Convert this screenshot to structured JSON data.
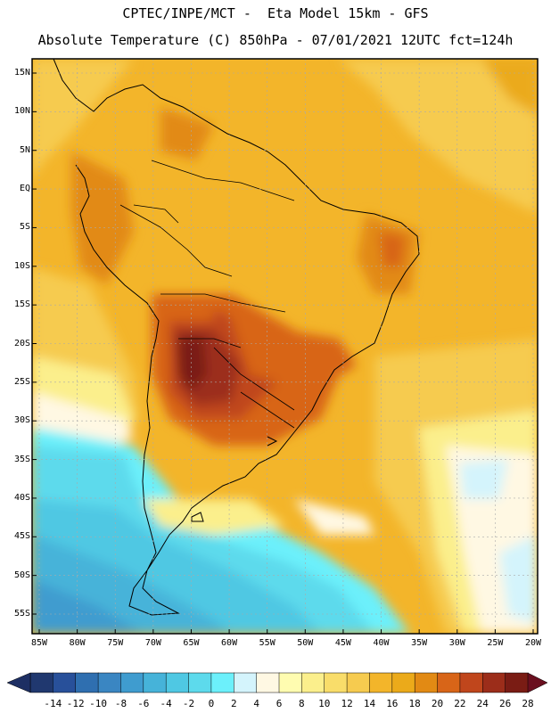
{
  "header": {
    "line1": "CPTEC/INPE/MCT -  Eta Model 15km - GFS",
    "line2": "Absolute Temperature (C) 850hPa - 07/01/2021 12UTC fct=124h"
  },
  "lat_labels": [
    "15N",
    "10N",
    "5N",
    "EQ",
    "5S",
    "10S",
    "15S",
    "20S",
    "25S",
    "30S",
    "35S",
    "40S",
    "45S",
    "50S",
    "55S"
  ],
  "lon_labels": [
    "85W",
    "80W",
    "75W",
    "70W",
    "65W",
    "60W",
    "55W",
    "50W",
    "45W",
    "40W",
    "35W",
    "30W",
    "25W",
    "20W"
  ],
  "colorbar": {
    "labels": [
      "-14",
      "-12",
      "-10",
      "-8",
      "-6",
      "-4",
      "-2",
      "0",
      "2",
      "4",
      "6",
      "8",
      "10",
      "12",
      "14",
      "16",
      "18",
      "20",
      "22",
      "24",
      "26",
      "28"
    ],
    "colors": [
      "#20386f",
      "#28509a",
      "#2f6fb0",
      "#3a86c2",
      "#3f9ccf",
      "#46b3d9",
      "#4fc8e3",
      "#5ddaec",
      "#6cf0fb",
      "#d4f4fc",
      "#fff8e3",
      "#fffcb0",
      "#fbef8c",
      "#f9dd6a",
      "#f6cb4f",
      "#f3b52a",
      "#ebaa1a",
      "#e28a14",
      "#d86518",
      "#c0461c",
      "#9c2d1a",
      "#7a1c14"
    ]
  }
}
